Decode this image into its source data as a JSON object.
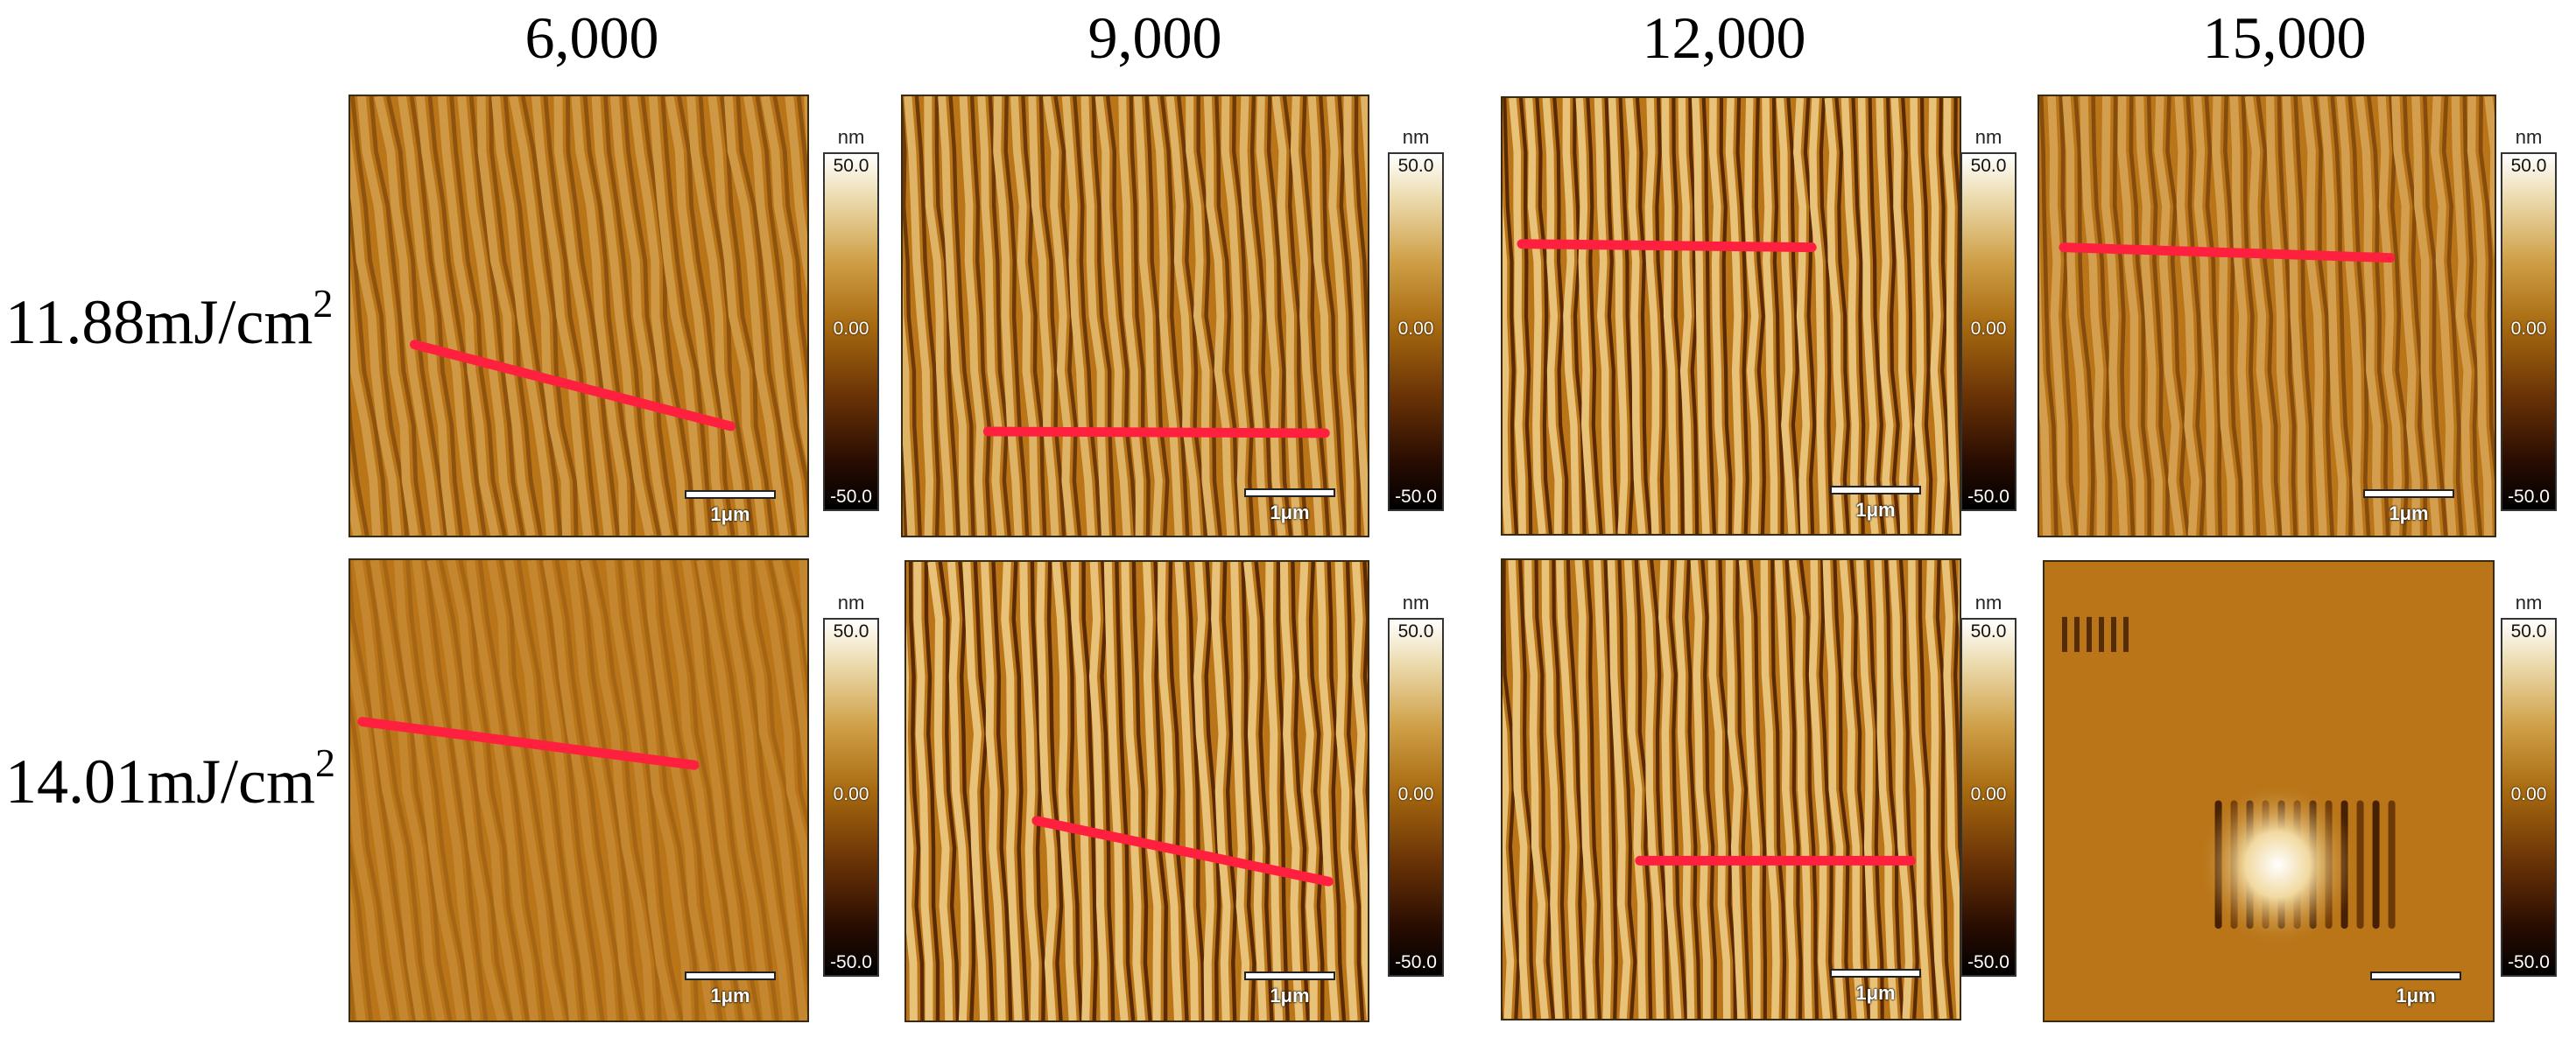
{
  "columns": [
    "6,000",
    "9,000",
    "12,000",
    "15,000"
  ],
  "rows": [
    {
      "label": "11.88mJ/cm",
      "sup": "2"
    },
    {
      "label": "14.01mJ/cm",
      "sup": "2"
    }
  ],
  "scale_bar_label": "1μm",
  "colorbar": {
    "unit": "nm",
    "max": "50.0",
    "mid": "0.00",
    "min": "-50.0"
  },
  "palette": {
    "light": "#e9c27a",
    "mid": "#b97518",
    "dark": "#5a2a04",
    "profile_line": "#ff2040"
  }
}
